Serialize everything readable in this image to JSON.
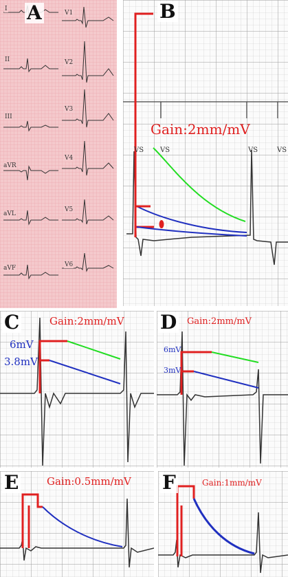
{
  "panels": {
    "A": {
      "letter": "A",
      "leads_left": [
        "I",
        "II",
        "III",
        "aVR",
        "aVL",
        "aVF"
      ],
      "leads_right": [
        "V1",
        "V2",
        "V3",
        "V4",
        "V5",
        "V6"
      ]
    },
    "B": {
      "letter": "B",
      "gain": "Gain:2mm/mV",
      "marker": "VS"
    },
    "C": {
      "letter": "C",
      "gain": "Gain:2mm/mV",
      "upper": "6mV",
      "lower": "3.8mV"
    },
    "D": {
      "letter": "D",
      "gain": "Gain:2mm/mV",
      "upper": "6mV",
      "lower": "3mV"
    },
    "E": {
      "letter": "E",
      "gain": "Gain:0.5mm/mV"
    },
    "F": {
      "letter": "F",
      "gain": "Gain:1mm/mV"
    }
  },
  "colors": {
    "ecg_grid_pink": "#f4c9cc",
    "pulse_red": "#e02020",
    "green_decay": "#22dd22",
    "blue_decay": "#2030c0",
    "trace": "#333333"
  }
}
